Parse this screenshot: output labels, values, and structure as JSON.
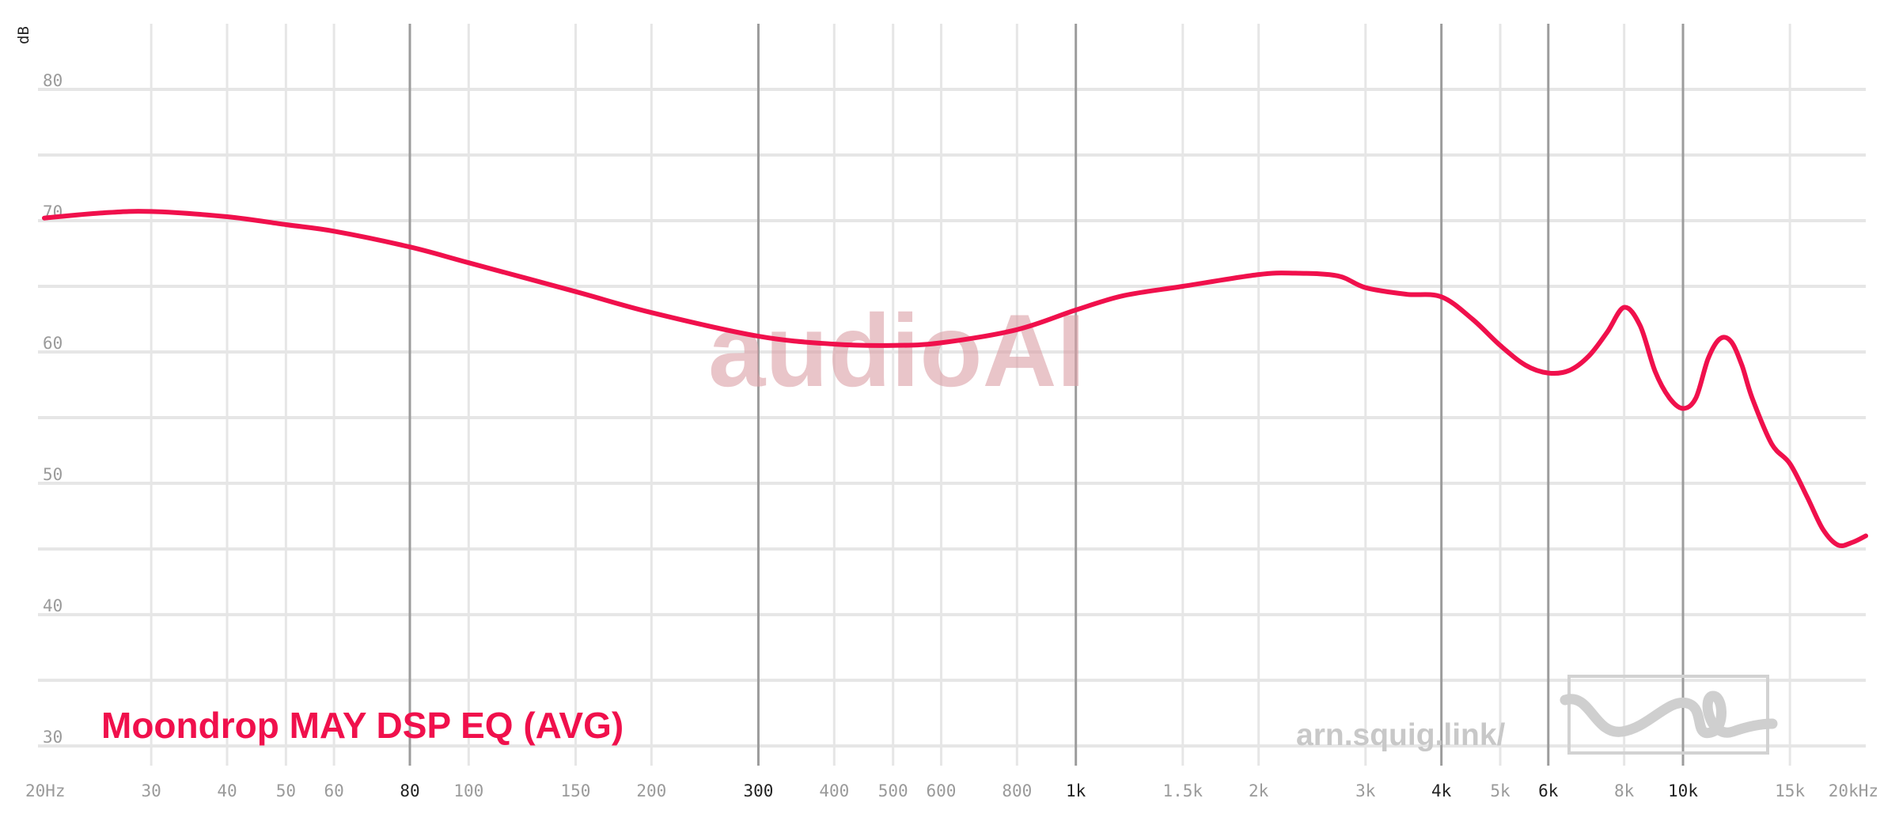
{
  "chart_data": {
    "type": "line",
    "title": "",
    "xlabel": "",
    "ylabel": "dB",
    "x_scale": "log",
    "xlim": [
      20,
      20000
    ],
    "ylim": [
      28.5,
      85
    ],
    "x_ticks": [
      {
        "value": 20,
        "label": "20Hz",
        "major": false
      },
      {
        "value": 30,
        "label": "30",
        "major": false
      },
      {
        "value": 40,
        "label": "40",
        "major": false
      },
      {
        "value": 50,
        "label": "50",
        "major": false
      },
      {
        "value": 60,
        "label": "60",
        "major": false
      },
      {
        "value": 80,
        "label": "80",
        "major": true
      },
      {
        "value": 100,
        "label": "100",
        "major": false
      },
      {
        "value": 150,
        "label": "150",
        "major": false
      },
      {
        "value": 200,
        "label": "200",
        "major": false
      },
      {
        "value": 300,
        "label": "300",
        "major": true
      },
      {
        "value": 400,
        "label": "400",
        "major": false
      },
      {
        "value": 500,
        "label": "500",
        "major": false
      },
      {
        "value": 600,
        "label": "600",
        "major": false
      },
      {
        "value": 800,
        "label": "800",
        "major": false
      },
      {
        "value": 1000,
        "label": "1k",
        "major": true
      },
      {
        "value": 1500,
        "label": "1.5k",
        "major": false
      },
      {
        "value": 2000,
        "label": "2k",
        "major": false
      },
      {
        "value": 3000,
        "label": "3k",
        "major": false
      },
      {
        "value": 4000,
        "label": "4k",
        "major": true
      },
      {
        "value": 5000,
        "label": "5k",
        "major": false
      },
      {
        "value": 6000,
        "label": "6k",
        "major": true
      },
      {
        "value": 8000,
        "label": "8k",
        "major": false
      },
      {
        "value": 10000,
        "label": "10k",
        "major": true
      },
      {
        "value": 15000,
        "label": "15k",
        "major": false
      },
      {
        "value": 20000,
        "label": "20kHz",
        "major": false
      }
    ],
    "y_ticks": [
      {
        "value": 30,
        "label": "30"
      },
      {
        "value": 40,
        "label": "40"
      },
      {
        "value": 50,
        "label": "50"
      },
      {
        "value": 60,
        "label": "60"
      },
      {
        "value": 70,
        "label": "70"
      },
      {
        "value": 80,
        "label": "80"
      }
    ],
    "y_minor_gridlines": [
      35,
      45,
      55,
      65,
      75
    ],
    "grid": true,
    "series": [
      {
        "name": "Moondrop MAY DSP EQ (AVG)",
        "color": "#f0104c",
        "x": [
          20,
          25,
          30,
          40,
          50,
          60,
          80,
          100,
          150,
          200,
          300,
          400,
          500,
          600,
          800,
          1000,
          1200,
          1500,
          2000,
          2300,
          2700,
          3000,
          3500,
          4000,
          4500,
          5000,
          5500,
          6000,
          6500,
          7000,
          7500,
          8000,
          8500,
          9000,
          9500,
          10000,
          10500,
          11000,
          11500,
          12000,
          12500,
          13000,
          14000,
          15000,
          16000,
          17000,
          18000,
          19000,
          20000
        ],
        "y": [
          70.2,
          70.6,
          70.7,
          70.3,
          69.7,
          69.2,
          68.0,
          66.8,
          64.6,
          63.0,
          61.2,
          60.6,
          60.5,
          60.7,
          61.7,
          63.2,
          64.3,
          65.0,
          65.9,
          66.0,
          65.8,
          64.9,
          64.4,
          64.2,
          62.5,
          60.5,
          59.0,
          58.4,
          58.6,
          59.7,
          61.5,
          63.4,
          62.0,
          58.5,
          56.5,
          55.7,
          56.5,
          59.5,
          61.0,
          60.8,
          59.0,
          56.5,
          53.0,
          51.5,
          49.0,
          46.5,
          45.3,
          45.5,
          46.0
        ]
      }
    ],
    "legend": "bottom-left"
  },
  "labels": {
    "series_label": "Moondrop MAY DSP EQ (AVG)",
    "watermark": "audioAI",
    "site": "arn.squig.link/"
  },
  "colors": {
    "series": "#f0104c",
    "major_grid": "#9c9c9c",
    "minor_grid": "#e6e6e6"
  },
  "icons": {
    "logo": "squiglink-logo-icon"
  }
}
